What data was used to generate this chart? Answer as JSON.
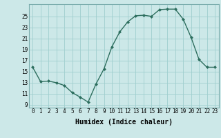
{
  "x": [
    0,
    1,
    2,
    3,
    4,
    5,
    6,
    7,
    8,
    9,
    10,
    11,
    12,
    13,
    14,
    15,
    16,
    17,
    18,
    19,
    20,
    21,
    22,
    23
  ],
  "y": [
    15.8,
    13.2,
    13.3,
    13.0,
    12.5,
    11.2,
    10.4,
    9.5,
    12.8,
    15.5,
    19.5,
    22.2,
    24.0,
    25.1,
    25.2,
    25.0,
    26.2,
    26.3,
    26.3,
    24.5,
    21.2,
    17.2,
    15.8,
    15.8
  ],
  "line_color": "#2d6e5e",
  "marker": "D",
  "markersize": 2.0,
  "linewidth": 1.0,
  "bg_color": "#cce8e8",
  "grid_color": "#9fcece",
  "xlabel": "Humidex (Indice chaleur)",
  "xlabel_fontsize": 7,
  "ylabel_ticks": [
    9,
    11,
    13,
    15,
    17,
    19,
    21,
    23,
    25
  ],
  "xlim": [
    -0.5,
    23.5
  ],
  "ylim": [
    8.5,
    27.2
  ],
  "xtick_labels": [
    "0",
    "1",
    "2",
    "3",
    "4",
    "5",
    "6",
    "7",
    "8",
    "9",
    "10",
    "11",
    "12",
    "13",
    "14",
    "15",
    "16",
    "17",
    "18",
    "19",
    "20",
    "21",
    "22",
    "23"
  ],
  "tick_fontsize": 5.5
}
